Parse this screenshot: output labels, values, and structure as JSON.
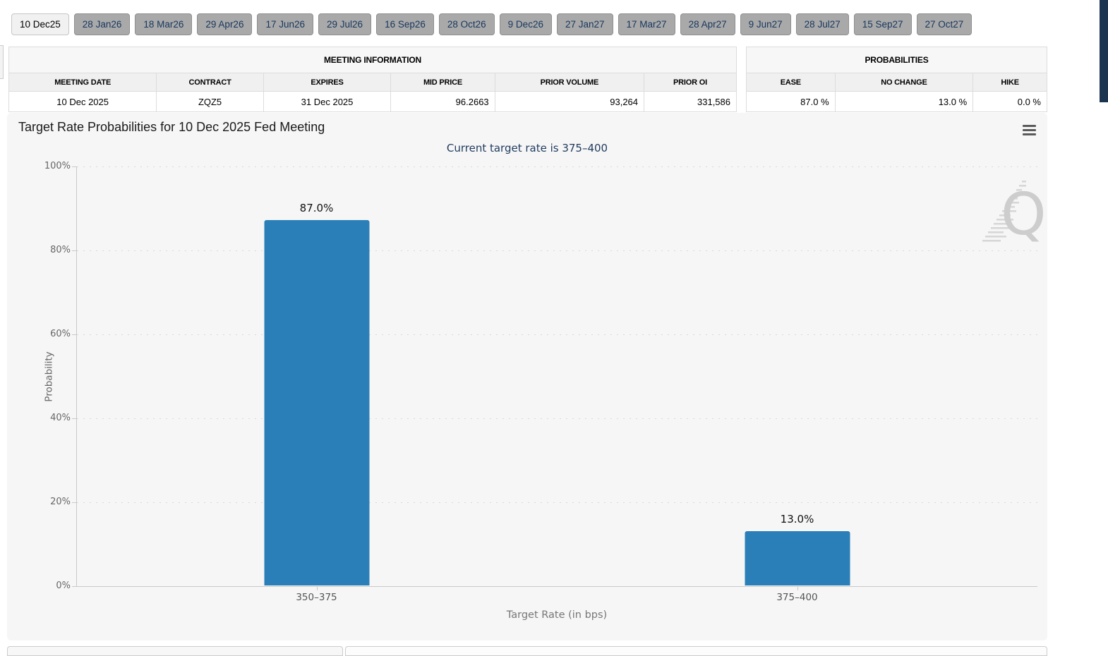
{
  "tabs": {
    "items": [
      {
        "label": "10 Dec25",
        "selected": true
      },
      {
        "label": "28 Jan26",
        "selected": false
      },
      {
        "label": "18 Mar26",
        "selected": false
      },
      {
        "label": "29 Apr26",
        "selected": false
      },
      {
        "label": "17 Jun26",
        "selected": false
      },
      {
        "label": "29 Jul26",
        "selected": false
      },
      {
        "label": "16 Sep26",
        "selected": false
      },
      {
        "label": "28 Oct26",
        "selected": false
      },
      {
        "label": "9 Dec26",
        "selected": false
      },
      {
        "label": "27 Jan27",
        "selected": false
      },
      {
        "label": "17 Mar27",
        "selected": false
      },
      {
        "label": "28 Apr27",
        "selected": false
      },
      {
        "label": "9 Jun27",
        "selected": false
      },
      {
        "label": "28 Jul27",
        "selected": false
      },
      {
        "label": "15 Sep27",
        "selected": false
      },
      {
        "label": "27 Oct27",
        "selected": false
      }
    ]
  },
  "meeting_info": {
    "title": "MEETING INFORMATION",
    "columns": [
      "MEETING DATE",
      "CONTRACT",
      "EXPIRES",
      "MID PRICE",
      "PRIOR VOLUME",
      "PRIOR OI"
    ],
    "row": [
      "10 Dec 2025",
      "ZQZ5",
      "31 Dec 2025",
      "96.2663",
      "93,264",
      "331,586"
    ]
  },
  "probabilities": {
    "title": "PROBABILITIES",
    "columns": [
      "EASE",
      "NO CHANGE",
      "HIKE"
    ],
    "row": [
      "87.0 %",
      "13.0 %",
      "0.0 %"
    ]
  },
  "chart_data": {
    "type": "bar",
    "title": "Target Rate Probabilities for 10 Dec 2025 Fed Meeting",
    "subtitle": "Current target rate is 375–400",
    "categories": [
      "350–375",
      "375–400"
    ],
    "values": [
      87.0,
      13.0
    ],
    "value_labels": [
      "87.0%",
      "13.0%"
    ],
    "xlabel": "Target Rate (in bps)",
    "ylabel": "Probability",
    "ylim": [
      0,
      100
    ],
    "yticks": [
      "0%",
      "20%",
      "40%",
      "60%",
      "80%",
      "100%"
    ],
    "grid": "dotted horizontal",
    "legend": "none",
    "bar_color": "#2a7fb8"
  },
  "icons": {
    "context_menu": "hamburger-icon",
    "watermark": "quikstrike-q-logo"
  },
  "colors": {
    "bar": "#2a7fb8",
    "tab_inactive_bg": "#a9a9a9",
    "tab_text": "#17365d",
    "subtitle_text": "#1f3a5f",
    "navy_strip": "#1b3450",
    "card_bg": "#f6f6f6"
  }
}
